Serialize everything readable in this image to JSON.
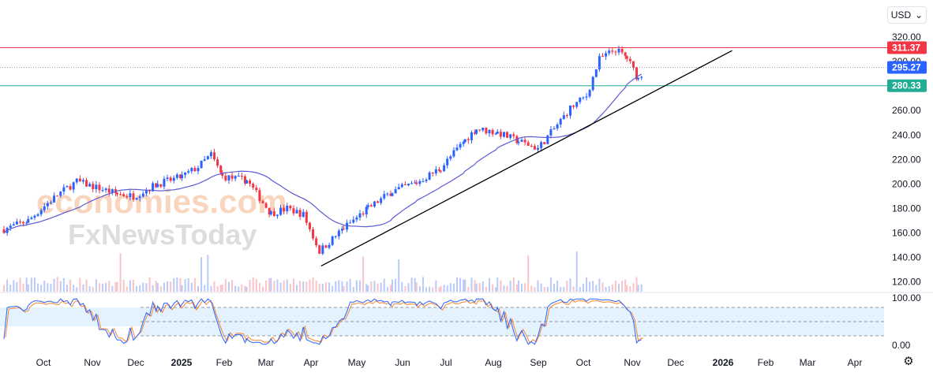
{
  "currency": {
    "label": "USD",
    "icon": "chevron-down-icon"
  },
  "settings_icon": "gear-icon",
  "watermark": {
    "line1": "economies.com",
    "line2": "FxNewsToday"
  },
  "colors": {
    "up": "#2962ff",
    "down": "#f23645",
    "ma": "#5b5bd6",
    "resistance": "#f23645",
    "support": "#22ab94",
    "trend": "#000000",
    "stoch_k": "#2962ff",
    "stoch_d": "#f7852e",
    "band": "#e3f2fd"
  },
  "chart_data": {
    "type": "candlestick",
    "price_axis": {
      "range": [
        112,
        322
      ],
      "ticks": [
        "320.00",
        "300.00",
        "280.00",
        "260.00",
        "240.00",
        "220.00",
        "200.00",
        "180.00",
        "160.00",
        "140.00",
        "120.00"
      ]
    },
    "time_axis": {
      "labels": [
        "Oct",
        "Nov",
        "Dec",
        "2025",
        "Feb",
        "Mar",
        "Apr",
        "May",
        "Jun",
        "Jul",
        "Aug",
        "Sep",
        "Oct",
        "Nov",
        "Dec",
        "2026",
        "Feb",
        "Mar",
        "Apr"
      ]
    },
    "levels": [
      {
        "name": "resistance",
        "value": 311.37,
        "label": "311.37"
      },
      {
        "name": "last",
        "value": 295.27,
        "label": "295.27"
      },
      {
        "name": "support",
        "value": 280.33,
        "label": "280.33"
      }
    ],
    "trendline": {
      "from": {
        "day": 196,
        "price": 133
      },
      "to": {
        "day": 450,
        "price": 309
      }
    },
    "stochastic": {
      "range": [
        0,
        100
      ],
      "ticks": [
        "100.00",
        "0.00"
      ],
      "band": [
        20,
        80
      ]
    },
    "anchors": [
      [
        0,
        163
      ],
      [
        15,
        170
      ],
      [
        25,
        182
      ],
      [
        35,
        193
      ],
      [
        45,
        202
      ],
      [
        55,
        198
      ],
      [
        70,
        192
      ],
      [
        80,
        190
      ],
      [
        95,
        200
      ],
      [
        110,
        206
      ],
      [
        120,
        214
      ],
      [
        128,
        224
      ],
      [
        135,
        206
      ],
      [
        150,
        203
      ],
      [
        165,
        176
      ],
      [
        175,
        180
      ],
      [
        185,
        175
      ],
      [
        195,
        145
      ],
      [
        210,
        164
      ],
      [
        225,
        180
      ],
      [
        240,
        194
      ],
      [
        255,
        201
      ],
      [
        270,
        213
      ],
      [
        285,
        236
      ],
      [
        292,
        245
      ],
      [
        305,
        242
      ],
      [
        318,
        235
      ],
      [
        330,
        229
      ],
      [
        340,
        245
      ],
      [
        350,
        262
      ],
      [
        360,
        272
      ],
      [
        368,
        302
      ],
      [
        378,
        310
      ],
      [
        385,
        303
      ],
      [
        392,
        286
      ],
      [
        396,
        294
      ]
    ],
    "candles": []
  }
}
